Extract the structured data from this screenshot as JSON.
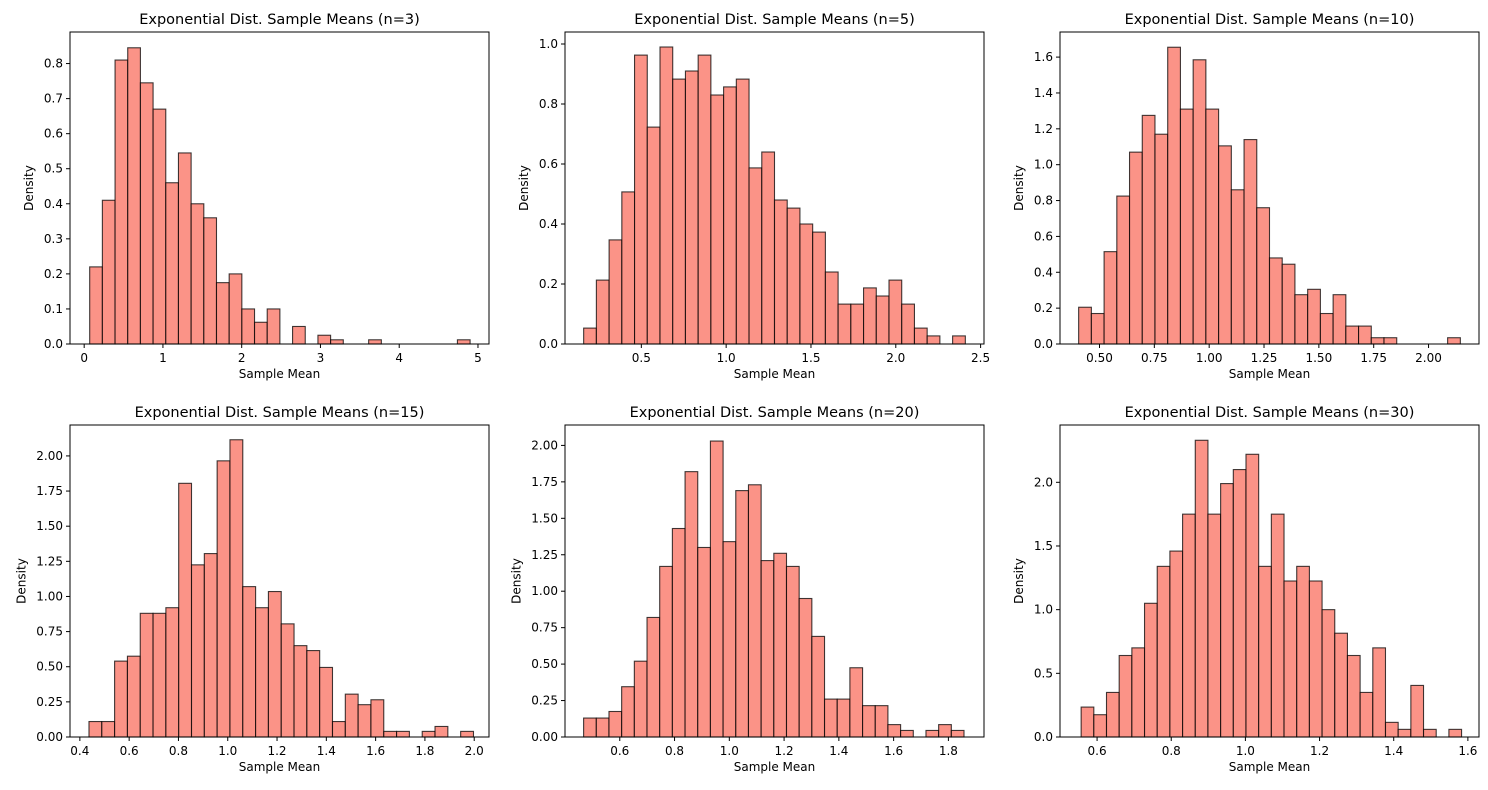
{
  "figure": {
    "bar_color": "#FA8072",
    "edge_color": "#000000"
  },
  "chart_data": [
    {
      "type": "bar",
      "title": "Exponential Dist. Sample Means (n=3)",
      "xlabel": "Sample Mean",
      "ylabel": "Density",
      "xlim": [
        -0.18,
        5.14
      ],
      "ylim": [
        0,
        0.89
      ],
      "xticks": [
        0,
        1,
        2,
        3,
        4,
        5
      ],
      "xtick_labels": [
        "0",
        "1",
        "2",
        "3",
        "4",
        "5"
      ],
      "yticks": [
        0,
        0.1,
        0.2,
        0.3,
        0.4,
        0.5,
        0.6,
        0.7,
        0.8
      ],
      "ytick_labels": [
        "0.0",
        "0.1",
        "0.2",
        "0.3",
        "0.4",
        "0.5",
        "0.6",
        "0.7",
        "0.8"
      ],
      "bin_start": 0.07,
      "bin_width": 0.161,
      "values": [
        0.22,
        0.41,
        0.81,
        0.845,
        0.745,
        0.67,
        0.46,
        0.545,
        0.4,
        0.36,
        0.175,
        0.2,
        0.1,
        0.062,
        0.1,
        0.0,
        0.05,
        0.0,
        0.025,
        0.012,
        0.0,
        0.0,
        0.012,
        0.0,
        0.0,
        0.0,
        0.0,
        0.0,
        0.0,
        0.012
      ],
      "grid": false,
      "legend": "none"
    },
    {
      "type": "bar",
      "title": "Exponential Dist. Sample Means (n=5)",
      "xlabel": "Sample Mean",
      "ylabel": "Density",
      "xlim": [
        0.05,
        2.52
      ],
      "ylim": [
        0,
        1.04
      ],
      "xticks": [
        0.5,
        1.0,
        1.5,
        2.0,
        2.5
      ],
      "xtick_labels": [
        "0.5",
        "1.0",
        "1.5",
        "2.0",
        "2.5"
      ],
      "yticks": [
        0,
        0.2,
        0.4,
        0.6,
        0.8,
        1.0
      ],
      "ytick_labels": [
        "0.0",
        "0.2",
        "0.4",
        "0.6",
        "0.8",
        "1.0"
      ],
      "bin_start": 0.16,
      "bin_width": 0.075,
      "values": [
        0.053,
        0.213,
        0.347,
        0.507,
        0.963,
        0.723,
        0.99,
        0.883,
        0.91,
        0.963,
        0.83,
        0.857,
        0.883,
        0.587,
        0.64,
        0.48,
        0.453,
        0.4,
        0.373,
        0.24,
        0.133,
        0.133,
        0.187,
        0.16,
        0.213,
        0.133,
        0.053,
        0.027,
        0.0,
        0.027
      ],
      "grid": false,
      "legend": "none"
    },
    {
      "type": "bar",
      "title": "Exponential Dist. Sample Means (n=10)",
      "xlabel": "Sample Mean",
      "ylabel": "Density",
      "xlim": [
        0.32,
        2.23
      ],
      "ylim": [
        0,
        1.74
      ],
      "xticks": [
        0.5,
        0.75,
        1.0,
        1.25,
        1.5,
        1.75,
        2.0
      ],
      "xtick_labels": [
        "0.50",
        "0.75",
        "1.00",
        "1.25",
        "1.50",
        "1.75",
        "2.00"
      ],
      "yticks": [
        0,
        0.2,
        0.4,
        0.6,
        0.8,
        1.0,
        1.2,
        1.4,
        1.6
      ],
      "ytick_labels": [
        "0.0",
        "0.2",
        "0.4",
        "0.6",
        "0.8",
        "1.0",
        "1.2",
        "1.4",
        "1.6"
      ],
      "bin_start": 0.405,
      "bin_width": 0.058,
      "values": [
        0.205,
        0.17,
        0.515,
        0.825,
        1.07,
        1.275,
        1.17,
        1.655,
        1.31,
        1.585,
        1.31,
        1.105,
        0.86,
        1.14,
        0.76,
        0.48,
        0.445,
        0.275,
        0.305,
        0.17,
        0.275,
        0.1,
        0.1,
        0.035,
        0.035,
        0.0,
        0.0,
        0.0,
        0.0,
        0.035
      ],
      "grid": false,
      "legend": "none"
    },
    {
      "type": "bar",
      "title": "Exponential Dist. Sample Means (n=15)",
      "xlabel": "Sample Mean",
      "ylabel": "Density",
      "xlim": [
        0.36,
        2.06
      ],
      "ylim": [
        0,
        2.22
      ],
      "xticks": [
        0.4,
        0.6,
        0.8,
        1.0,
        1.2,
        1.4,
        1.6,
        1.8,
        2.0
      ],
      "xtick_labels": [
        "0.4",
        "0.6",
        "0.8",
        "1.0",
        "1.2",
        "1.4",
        "1.6",
        "1.8",
        "2.0"
      ],
      "yticks": [
        0,
        0.25,
        0.5,
        0.75,
        1.0,
        1.25,
        1.5,
        1.75,
        2.0
      ],
      "ytick_labels": [
        "0.00",
        "0.25",
        "0.50",
        "0.75",
        "1.00",
        "1.25",
        "1.50",
        "1.75",
        "2.00"
      ],
      "bin_start": 0.437,
      "bin_width": 0.052,
      "values": [
        0.11,
        0.11,
        0.54,
        0.575,
        0.88,
        0.88,
        0.92,
        1.805,
        1.225,
        1.305,
        1.965,
        2.115,
        1.07,
        0.92,
        1.035,
        0.805,
        0.65,
        0.615,
        0.495,
        0.11,
        0.305,
        0.23,
        0.265,
        0.04,
        0.04,
        0.0,
        0.04,
        0.075,
        0.0,
        0.04
      ],
      "grid": false,
      "legend": "none"
    },
    {
      "type": "bar",
      "title": "Exponential Dist. Sample Means (n=20)",
      "xlabel": "Sample Mean",
      "ylabel": "Density",
      "xlim": [
        0.4,
        1.93
      ],
      "ylim": [
        0,
        2.14
      ],
      "xticks": [
        0.6,
        0.8,
        1.0,
        1.2,
        1.4,
        1.6,
        1.8
      ],
      "xtick_labels": [
        "0.6",
        "0.8",
        "1.0",
        "1.2",
        "1.4",
        "1.6",
        "1.8"
      ],
      "yticks": [
        0,
        0.25,
        0.5,
        0.75,
        1.0,
        1.25,
        1.5,
        1.75,
        2.0
      ],
      "ytick_labels": [
        "0.00",
        "0.25",
        "0.50",
        "0.75",
        "1.00",
        "1.25",
        "1.50",
        "1.75",
        "2.00"
      ],
      "bin_start": 0.468,
      "bin_width": 0.0463,
      "values": [
        0.13,
        0.13,
        0.175,
        0.345,
        0.52,
        0.82,
        1.17,
        1.43,
        1.82,
        1.3,
        2.03,
        1.34,
        1.69,
        1.73,
        1.21,
        1.26,
        1.17,
        0.95,
        0.69,
        0.26,
        0.26,
        0.475,
        0.215,
        0.215,
        0.085,
        0.045,
        0.0,
        0.045,
        0.085,
        0.045
      ],
      "grid": false,
      "legend": "none"
    },
    {
      "type": "bar",
      "title": "Exponential Dist. Sample Means (n=30)",
      "xlabel": "Sample Mean",
      "ylabel": "Density",
      "xlim": [
        0.5,
        1.63
      ],
      "ylim": [
        0,
        2.45
      ],
      "xticks": [
        0.6,
        0.8,
        1.0,
        1.2,
        1.4,
        1.6
      ],
      "xtick_labels": [
        "0.6",
        "0.8",
        "1.0",
        "1.2",
        "1.4",
        "1.6"
      ],
      "yticks": [
        0,
        0.5,
        1.0,
        1.5,
        2.0
      ],
      "ytick_labels": [
        "0.0",
        "0.5",
        "1.0",
        "1.5",
        "2.0"
      ],
      "bin_start": 0.557,
      "bin_width": 0.0342,
      "values": [
        0.235,
        0.175,
        0.35,
        0.64,
        0.7,
        1.05,
        1.34,
        1.46,
        1.75,
        2.33,
        1.75,
        1.99,
        2.1,
        2.22,
        1.34,
        1.75,
        1.225,
        1.34,
        1.225,
        1.0,
        0.815,
        0.64,
        0.35,
        0.7,
        0.115,
        0.06,
        0.405,
        0.06,
        0.0,
        0.06
      ],
      "grid": false,
      "legend": "none"
    }
  ]
}
